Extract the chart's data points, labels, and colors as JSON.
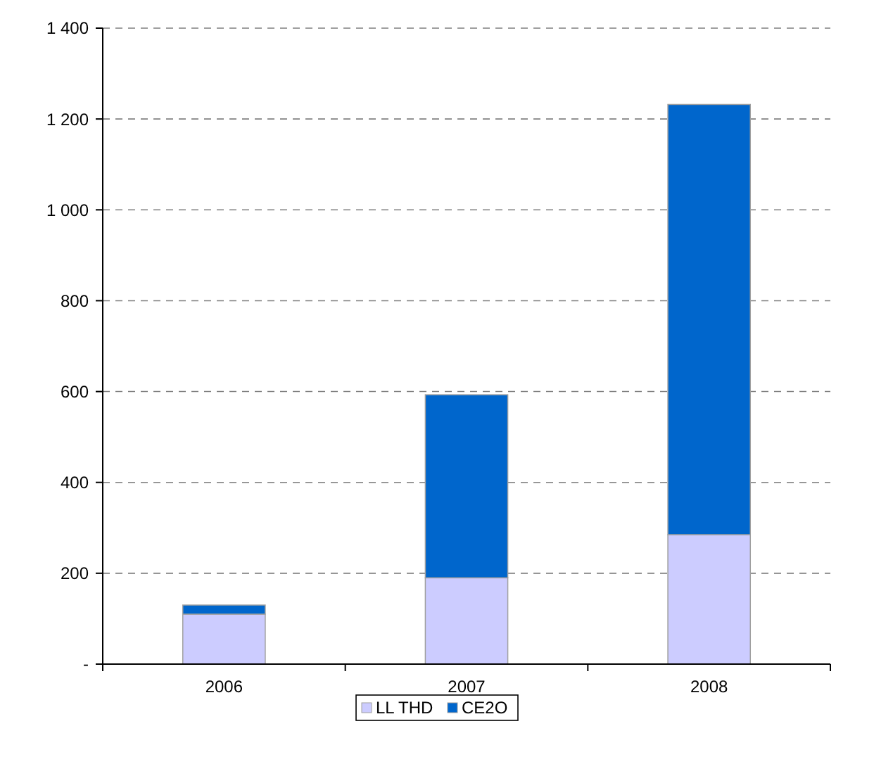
{
  "chart_data": {
    "type": "bar",
    "stacked": true,
    "categories": [
      "2006",
      "2007",
      "2008"
    ],
    "series": [
      {
        "name": "LL THD",
        "color": "#ccccff",
        "values": [
          110,
          190,
          285
        ]
      },
      {
        "name": "CE2O",
        "color": "#0066cc",
        "values": [
          20,
          403,
          947
        ]
      }
    ],
    "ylim": [
      0,
      1400
    ],
    "yticks": [
      {
        "value": 0,
        "label": "-"
      },
      200,
      400,
      600,
      800,
      {
        "value": 1000,
        "label": "1 000"
      },
      {
        "value": 1200,
        "label": "1 200"
      },
      {
        "value": 1400,
        "label": "1 400"
      }
    ],
    "grid": "y",
    "legend": "bottom"
  }
}
